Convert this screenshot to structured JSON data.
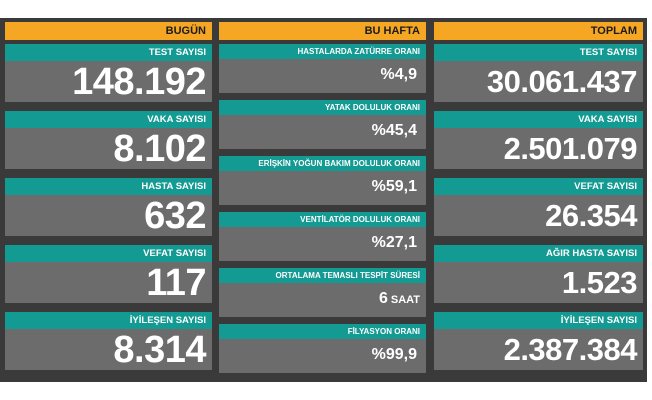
{
  "columns": {
    "today": {
      "header": "BUGÜN",
      "cards": [
        {
          "label": "TEST SAYISI",
          "value": "148.192"
        },
        {
          "label": "VAKA SAYISI",
          "value": "8.102"
        },
        {
          "label": "HASTA SAYISI",
          "value": "632"
        },
        {
          "label": "VEFAT SAYISI",
          "value": "117"
        },
        {
          "label": "İYİLEŞEN SAYISI",
          "value": "8.314"
        }
      ]
    },
    "week": {
      "header": "BU HAFTA",
      "cards": [
        {
          "label": "HASTALARDA ZATÜRRE ORANI",
          "value": "%4,9",
          "unit": ""
        },
        {
          "label": "YATAK DOLULUK ORANI",
          "value": "%45,4",
          "unit": ""
        },
        {
          "label": "ERİŞKİN YOĞUN BAKIM DOLULUK ORANI",
          "value": "%59,1",
          "unit": ""
        },
        {
          "label": "VENTİLATÖR DOLULUK ORANI",
          "value": "%27,1",
          "unit": ""
        },
        {
          "label": "ORTALAMA TEMASLI TESPİT SÜRESİ",
          "value": "6",
          "unit": "SAAT"
        },
        {
          "label": "FİLYASYON ORANI",
          "value": "%99,9",
          "unit": ""
        }
      ]
    },
    "total": {
      "header": "TOPLAM",
      "cards": [
        {
          "label": "TEST SAYISI",
          "value": "30.061.437"
        },
        {
          "label": "VAKA SAYISI",
          "value": "2.501.079"
        },
        {
          "label": "VEFAT SAYISI",
          "value": "26.354"
        },
        {
          "label": "AĞIR HASTA SAYISI",
          "value": "1.523"
        },
        {
          "label": "İYİLEŞEN SAYISI",
          "value": "2.387.384"
        }
      ]
    }
  }
}
